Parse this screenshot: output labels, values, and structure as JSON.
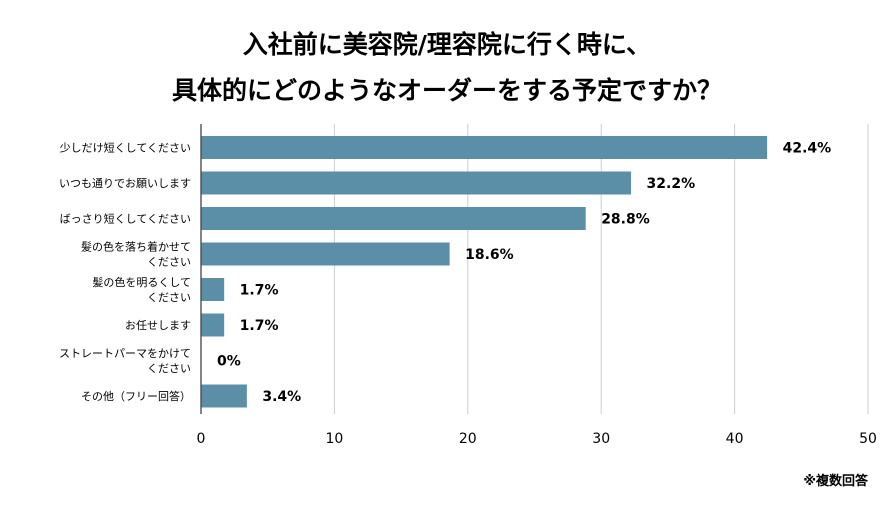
{
  "chart_data": {
    "type": "bar",
    "orientation": "horizontal",
    "title_line1": "入社前に美容院/理容院に行く時に、",
    "title_line2": "具体的にどのようなオーダーをする予定ですか？",
    "categories": [
      "少しだけ短くしてください",
      "いつも通りでお願いします",
      "ばっさり短くしてください",
      "髪の色を落ち着かせてください",
      "髪の色を明るくしてください",
      "お任せします",
      "ストレートパーマをかけてください",
      "その他（フリー回答）"
    ],
    "category_lines": [
      [
        "少しだけ短くしてください"
      ],
      [
        "いつも通りでお願いします"
      ],
      [
        "ばっさり短くしてください"
      ],
      [
        "髪の色を落ち着かせて",
        "ください"
      ],
      [
        "髪の色を明るくして",
        "ください"
      ],
      [
        "お任せします"
      ],
      [
        "ストレートパーマをかけて",
        "ください"
      ],
      [
        "その他（フリー回答）"
      ]
    ],
    "values": [
      42.4,
      32.2,
      28.8,
      18.6,
      1.7,
      1.7,
      0,
      3.4
    ],
    "value_labels": [
      "42.4%",
      "32.2%",
      "28.8%",
      "18.6%",
      "1.7%",
      "1.7%",
      "0%",
      "3.4%"
    ],
    "xlim": [
      0,
      50
    ],
    "xticks": [
      "0",
      "10",
      "20",
      "30",
      "40",
      "50"
    ],
    "grid": true,
    "bar_color": "#5b8fa8",
    "note": "※複数回答"
  }
}
